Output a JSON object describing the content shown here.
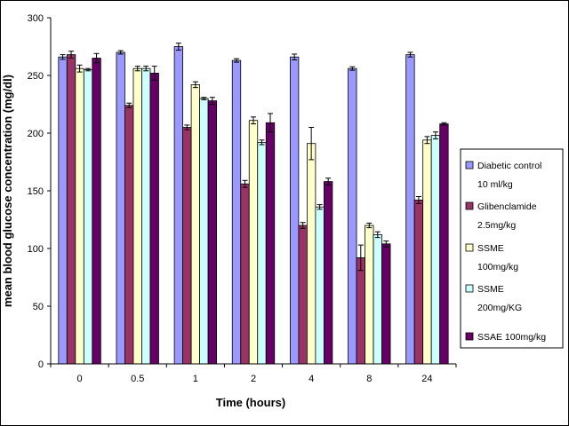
{
  "chart_data": {
    "type": "bar",
    "title": "",
    "xlabel": "Time (hours)",
    "ylabel": "mean blood glucose concentration (mg/dl)",
    "ylim": [
      0,
      300
    ],
    "yticks": [
      0,
      50,
      100,
      150,
      200,
      250,
      300
    ],
    "grid": false,
    "legend_position": "right",
    "error_bars": true,
    "categories": [
      "0",
      "0.5",
      "1",
      "2",
      "4",
      "8",
      "24"
    ],
    "series": [
      {
        "name": "Diabetic control 10 ml/kg",
        "legend_lines": [
          "Diabetic control",
          "10 ml/kg"
        ],
        "color": "#9999ff",
        "values": [
          266,
          270,
          275,
          263,
          266,
          256,
          268
        ],
        "errors": [
          2,
          1.5,
          3,
          1.5,
          2.5,
          1.5,
          2
        ]
      },
      {
        "name": "Glibenclamide 2.5mg/kg",
        "legend_lines": [
          "Glibenclamide",
          "2.5mg/kg"
        ],
        "color": "#993366",
        "values": [
          268,
          224,
          205,
          156,
          120,
          92,
          142
        ],
        "errors": [
          3,
          2,
          2,
          3,
          2.5,
          11,
          3
        ]
      },
      {
        "name": "SSME 100mg/kg",
        "legend_lines": [
          "SSME",
          "100mg/kg"
        ],
        "color": "#ffffcc",
        "values": [
          256,
          256,
          242,
          211,
          191,
          120,
          194
        ],
        "errors": [
          3,
          2,
          2.5,
          3,
          14,
          2,
          3
        ]
      },
      {
        "name": "SSME 200mg/KG",
        "legend_lines": [
          "SSME",
          "200mg/KG"
        ],
        "color": "#ccffff",
        "values": [
          255,
          256,
          230,
          192,
          136,
          112,
          198
        ],
        "errors": [
          1,
          2,
          1,
          2,
          2,
          2.5,
          3
        ]
      },
      {
        "name": "SSAE 100mg/kg",
        "legend_lines": [
          "SSAE  100mg/kg"
        ],
        "color": "#660066",
        "values": [
          265,
          252,
          228,
          209,
          158,
          104,
          208
        ],
        "errors": [
          4,
          6,
          3,
          8,
          3,
          2.5,
          1
        ]
      }
    ]
  }
}
